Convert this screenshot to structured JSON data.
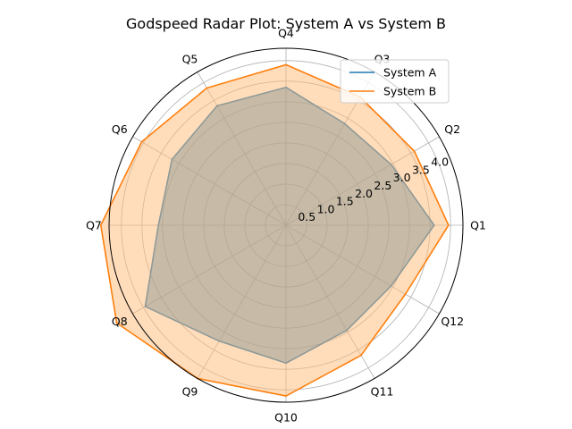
{
  "chart_data": {
    "type": "radar",
    "title": "Godspeed Radar Plot: System A vs System B",
    "categories": [
      "Q1",
      "Q2",
      "Q3",
      "Q4",
      "Q5",
      "Q6",
      "Q7",
      "Q8",
      "Q9",
      "Q10",
      "Q11",
      "Q12"
    ],
    "radial_ticks": [
      "0.5",
      "1.0",
      "1.5",
      "2.0",
      "2.5",
      "3.0",
      "3.5",
      "4.0"
    ],
    "rlim": [
      0,
      4.3
    ],
    "grid": true,
    "legend_position": "top-right",
    "series": [
      {
        "name": "System A",
        "color": "#1f77b4",
        "fill": false,
        "values": [
          3.6,
          2.95,
          2.85,
          3.35,
          3.35,
          3.2,
          3.1,
          3.95,
          3.25,
          3.35,
          2.95,
          2.95
        ]
      },
      {
        "name": "System B",
        "color": "#ff7f0e",
        "fill": true,
        "fill_color": "#ffbb78",
        "values": [
          3.95,
          3.6,
          3.6,
          3.9,
          3.85,
          4.05,
          4.5,
          4.75,
          4.3,
          4.15,
          3.65,
          3.35
        ]
      }
    ]
  }
}
